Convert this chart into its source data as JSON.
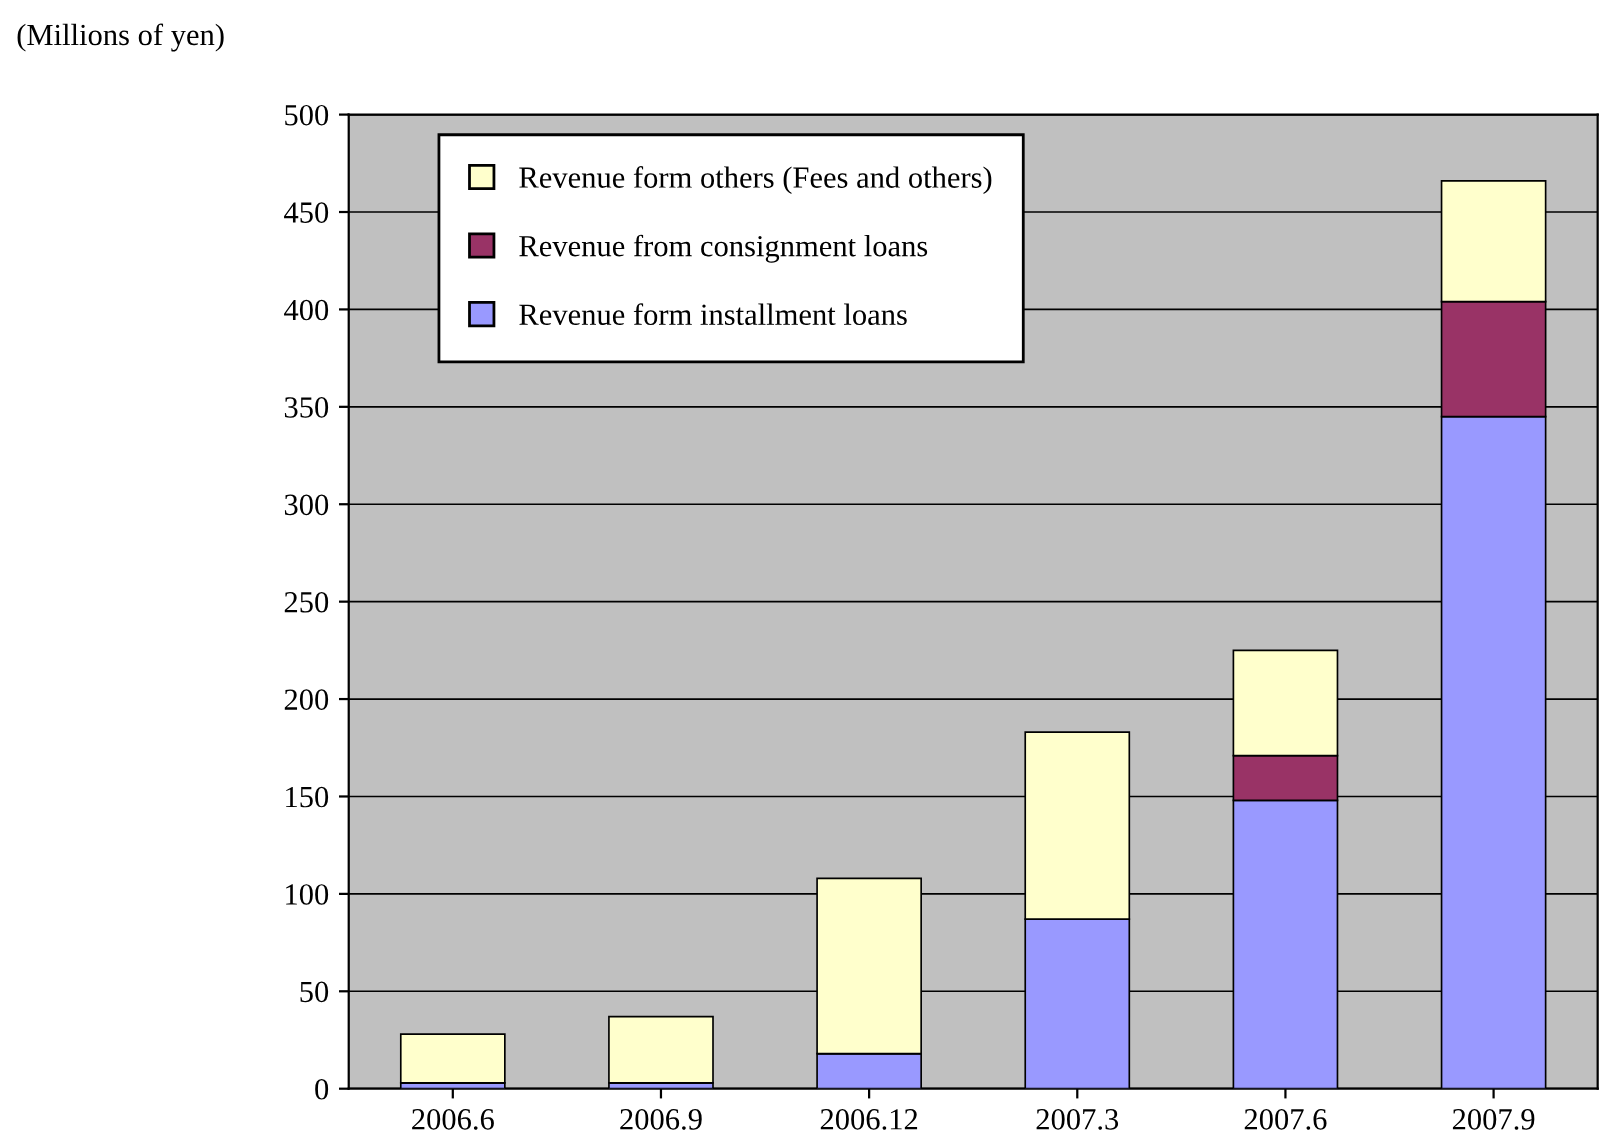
{
  "chart_data": {
    "type": "bar",
    "stacked": true,
    "ylabel": "(Millions of yen)",
    "categories": [
      "2006.6",
      "2006.9",
      "2006.12",
      "2007.3",
      "2007.6",
      "2007.9"
    ],
    "series": [
      {
        "name": "Revenue form installment loans",
        "color": "#9999ff",
        "values": [
          3,
          3,
          18,
          87,
          148,
          345
        ]
      },
      {
        "name": "Revenue from consignment loans",
        "color": "#993366",
        "values": [
          0,
          0,
          0,
          0,
          23,
          59
        ]
      },
      {
        "name": "Revenue form others (Fees and others)",
        "color": "#ffffcc",
        "values": [
          25,
          34,
          90,
          96,
          54,
          62
        ]
      }
    ],
    "ylim": [
      0,
      500
    ],
    "yticks": [
      0,
      50,
      100,
      150,
      200,
      250,
      300,
      350,
      400,
      450,
      500
    ],
    "grid": "y",
    "legend": "top left"
  }
}
